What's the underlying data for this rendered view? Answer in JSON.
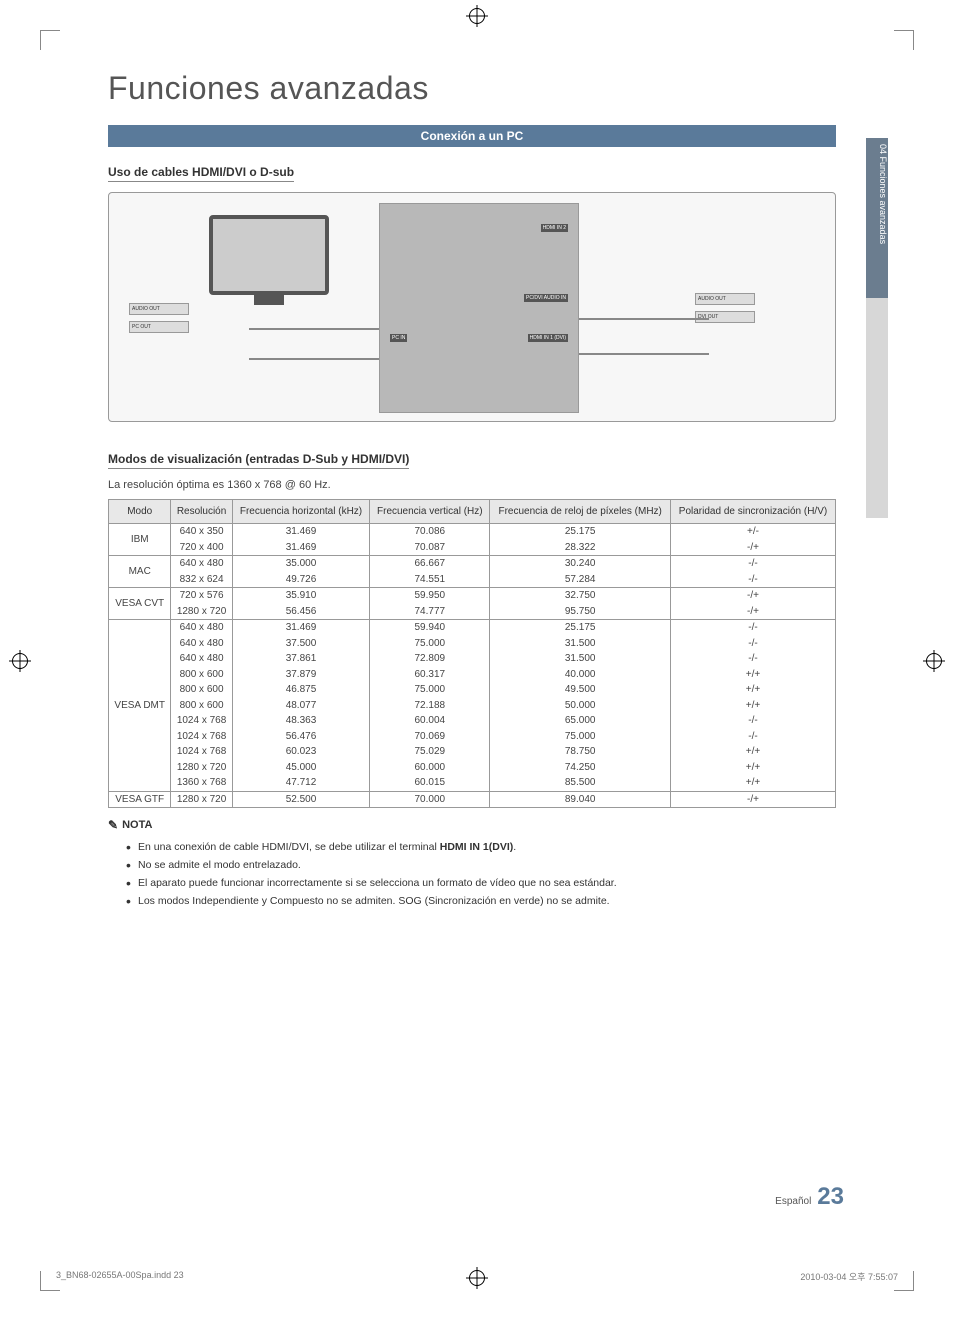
{
  "page": {
    "title": "Funciones avanzadas",
    "section_bar": "Conexión a un PC",
    "sub_heading_1": "Uso de cables HDMI/DVI o D-sub",
    "sub_heading_2": "Modos de visualización (entradas D-Sub y HDMI/DVI)",
    "resolution_note": "La resolución óptima es 1360 x 768 @ 60 Hz.",
    "side_tab": "04   Funciones avanzadas",
    "lang": "Español",
    "page_number": "23",
    "footer_left": "3_BN68-02655A-00Spa.indd   23",
    "footer_right": "2010-03-04   오후 7:55:07"
  },
  "diagram_labels": {
    "hdmi_in2": "HDMI IN 2",
    "pc_dvi_audio_in": "PC/DVI AUDIO IN",
    "pc_in": "PC IN",
    "hdmi_in1_dvi": "HDMI IN 1 (DVI)",
    "audio_out_l": "AUDIO OUT",
    "pc_out": "PC OUT",
    "audio_out_r": "AUDIO OUT",
    "dvi_out": "DVI OUT"
  },
  "table": {
    "columns": [
      "Modo",
      "Resolución",
      "Frecuencia horizontal (kHz)",
      "Frecuencia vertical (Hz)",
      "Frecuencia de reloj de píxeles (MHz)",
      "Polaridad de sincronización (H/V)"
    ],
    "groups": [
      {
        "mode": "IBM",
        "rows": [
          [
            "640 x 350",
            "31.469",
            "70.086",
            "25.175",
            "+/-"
          ],
          [
            "720 x 400",
            "31.469",
            "70.087",
            "28.322",
            "-/+"
          ]
        ]
      },
      {
        "mode": "MAC",
        "rows": [
          [
            "640 x 480",
            "35.000",
            "66.667",
            "30.240",
            "-/-"
          ],
          [
            "832 x 624",
            "49.726",
            "74.551",
            "57.284",
            "-/-"
          ]
        ]
      },
      {
        "mode": "VESA CVT",
        "rows": [
          [
            "720 x 576",
            "35.910",
            "59.950",
            "32.750",
            "-/+"
          ],
          [
            "1280 x 720",
            "56.456",
            "74.777",
            "95.750",
            "-/+"
          ]
        ]
      },
      {
        "mode": "VESA DMT",
        "rows": [
          [
            "640 x 480",
            "31.469",
            "59.940",
            "25.175",
            "-/-"
          ],
          [
            "640 x 480",
            "37.500",
            "75.000",
            "31.500",
            "-/-"
          ],
          [
            "640 x 480",
            "37.861",
            "72.809",
            "31.500",
            "-/-"
          ],
          [
            "800 x 600",
            "37.879",
            "60.317",
            "40.000",
            "+/+"
          ],
          [
            "800 x 600",
            "46.875",
            "75.000",
            "49.500",
            "+/+"
          ],
          [
            "800 x 600",
            "48.077",
            "72.188",
            "50.000",
            "+/+"
          ],
          [
            "1024 x 768",
            "48.363",
            "60.004",
            "65.000",
            "-/-"
          ],
          [
            "1024 x 768",
            "56.476",
            "70.069",
            "75.000",
            "-/-"
          ],
          [
            "1024 x 768",
            "60.023",
            "75.029",
            "78.750",
            "+/+"
          ],
          [
            "1280 x 720",
            "45.000",
            "60.000",
            "74.250",
            "+/+"
          ],
          [
            "1360 x 768",
            "47.712",
            "60.015",
            "85.500",
            "+/+"
          ]
        ]
      },
      {
        "mode": "VESA GTF",
        "rows": [
          [
            "1280 x 720",
            "52.500",
            "70.000",
            "89.040",
            "-/+"
          ]
        ]
      }
    ],
    "header_bg": "#e8e8e8",
    "border_color": "#999999",
    "font_size": 10
  },
  "notes": {
    "heading": "NOTA",
    "items": [
      "En una conexión de cable HDMI/DVI, se debe utilizar el terminal HDMI IN 1(DVI).",
      "No se admite el modo entrelazado.",
      "El aparato puede funcionar incorrectamente si se selecciona un formato de vídeo que no sea estándar.",
      "Los modos Independiente y Compuesto no se admiten. SOG (Sincronización en verde) no se admite."
    ]
  },
  "colors": {
    "section_bar_bg": "#5a7a9a",
    "section_bar_fg": "#ffffff",
    "side_tab_bg": "#6b7d8f",
    "side_tab_light": "#d7d7d7",
    "page_num_accent": "#5a7a9a"
  }
}
